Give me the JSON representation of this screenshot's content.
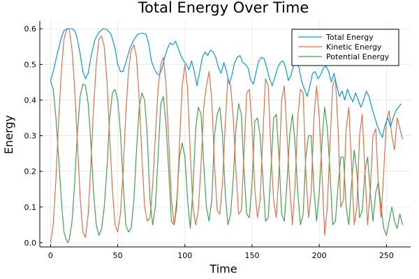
{
  "chart_data": {
    "type": "line",
    "title": "Total Energy Over Time",
    "xlabel": "Time",
    "ylabel": "Energy",
    "xlim": [
      -8,
      268
    ],
    "ylim": [
      -0.012,
      0.622
    ],
    "xticks": [
      0,
      50,
      100,
      150,
      200,
      250
    ],
    "yticks": [
      0.0,
      0.1,
      0.2,
      0.3,
      0.4,
      0.5,
      0.6
    ],
    "xtick_labels": [
      "0",
      "50",
      "100",
      "150",
      "200",
      "250"
    ],
    "ytick_labels": [
      "0.0",
      "0.1",
      "0.2",
      "0.3",
      "0.4",
      "0.5",
      "0.6"
    ],
    "grid": true,
    "legend_position": "top-right",
    "series": [
      {
        "name": "Total Energy",
        "color": "#009af9",
        "x": [
          0,
          2,
          5,
          8,
          10,
          13,
          16,
          18,
          20,
          22,
          24,
          26,
          28,
          30,
          33,
          36,
          39,
          42,
          45,
          48,
          50,
          52,
          54,
          56,
          59,
          62,
          65,
          68,
          71,
          73,
          75,
          77,
          79,
          81,
          83,
          85,
          87,
          89,
          91,
          93,
          95,
          97,
          99,
          101,
          103,
          105,
          107,
          109,
          111,
          113,
          115,
          117,
          119,
          121,
          123,
          125,
          127,
          129,
          131,
          133,
          135,
          137,
          139,
          141,
          143,
          145,
          147,
          149,
          151,
          153,
          155,
          157,
          159,
          161,
          163,
          165,
          167,
          169,
          171,
          173,
          175,
          177,
          179,
          181,
          183,
          185,
          187,
          189,
          191,
          193,
          195,
          197,
          199,
          201,
          203,
          205,
          207,
          209,
          211,
          213,
          215,
          217,
          219,
          221,
          223,
          225,
          227,
          229,
          231,
          233,
          235,
          237,
          239,
          241,
          243,
          245,
          247,
          249,
          251,
          253,
          255,
          257,
          259,
          261
        ],
        "y": [
          0.455,
          0.48,
          0.53,
          0.575,
          0.595,
          0.6,
          0.6,
          0.595,
          0.57,
          0.53,
          0.48,
          0.46,
          0.475,
          0.52,
          0.57,
          0.59,
          0.6,
          0.598,
          0.585,
          0.545,
          0.5,
          0.48,
          0.48,
          0.505,
          0.545,
          0.57,
          0.585,
          0.588,
          0.585,
          0.56,
          0.51,
          0.49,
          0.475,
          0.47,
          0.49,
          0.52,
          0.545,
          0.56,
          0.555,
          0.565,
          0.545,
          0.525,
          0.51,
          0.5,
          0.485,
          0.51,
          0.48,
          0.44,
          0.48,
          0.52,
          0.535,
          0.525,
          0.54,
          0.535,
          0.52,
          0.49,
          0.475,
          0.505,
          0.48,
          0.445,
          0.47,
          0.505,
          0.52,
          0.525,
          0.505,
          0.5,
          0.49,
          0.455,
          0.445,
          0.48,
          0.51,
          0.52,
          0.515,
          0.49,
          0.46,
          0.44,
          0.465,
          0.49,
          0.505,
          0.51,
          0.49,
          0.455,
          0.47,
          0.5,
          0.505,
          0.49,
          0.45,
          0.43,
          0.41,
          0.44,
          0.475,
          0.48,
          0.46,
          0.47,
          0.49,
          0.495,
          0.48,
          0.45,
          0.475,
          0.44,
          0.41,
          0.425,
          0.4,
          0.43,
          0.41,
          0.395,
          0.42,
          0.4,
          0.38,
          0.4,
          0.425,
          0.41,
          0.38,
          0.355,
          0.33,
          0.31,
          0.295,
          0.33,
          0.35,
          0.325,
          0.35,
          0.37,
          0.38,
          0.39
        ]
      },
      {
        "name": "Kinetic Energy",
        "color": "#e26f46",
        "x": [
          0,
          2,
          4,
          6,
          8,
          10,
          12,
          13,
          14,
          16,
          18,
          20,
          22,
          24,
          26,
          28,
          30,
          32,
          34,
          36,
          38,
          40,
          42,
          44,
          46,
          48,
          50,
          52,
          54,
          56,
          58,
          60,
          62,
          64,
          66,
          68,
          70,
          72,
          74,
          76,
          78,
          80,
          82,
          84,
          86,
          88,
          90,
          92,
          94,
          96,
          98,
          100,
          102,
          104,
          106,
          108,
          110,
          112,
          114,
          116,
          118,
          120,
          122,
          124,
          126,
          128,
          130,
          132,
          134,
          136,
          138,
          140,
          142,
          144,
          146,
          148,
          150,
          152,
          154,
          156,
          158,
          160,
          162,
          164,
          166,
          168,
          170,
          172,
          174,
          176,
          178,
          180,
          182,
          184,
          186,
          188,
          190,
          192,
          194,
          196,
          198,
          200,
          202,
          204,
          206,
          208,
          210,
          212,
          214,
          216,
          218,
          220,
          222,
          224,
          226,
          228,
          230,
          232,
          234,
          236,
          238,
          240,
          242,
          244,
          246,
          248,
          250,
          252,
          254,
          256,
          258,
          260,
          262
        ],
        "y": [
          0.0,
          0.05,
          0.18,
          0.34,
          0.48,
          0.57,
          0.6,
          0.6,
          0.595,
          0.54,
          0.43,
          0.28,
          0.13,
          0.03,
          0.015,
          0.08,
          0.22,
          0.38,
          0.5,
          0.57,
          0.58,
          0.55,
          0.45,
          0.3,
          0.15,
          0.05,
          0.03,
          0.08,
          0.2,
          0.36,
          0.48,
          0.54,
          0.555,
          0.52,
          0.4,
          0.24,
          0.1,
          0.06,
          0.07,
          0.16,
          0.3,
          0.43,
          0.5,
          0.52,
          0.44,
          0.28,
          0.12,
          0.05,
          0.1,
          0.28,
          0.44,
          0.5,
          0.43,
          0.25,
          0.1,
          0.05,
          0.09,
          0.22,
          0.38,
          0.44,
          0.48,
          0.4,
          0.22,
          0.09,
          0.08,
          0.17,
          0.33,
          0.46,
          0.44,
          0.35,
          0.2,
          0.08,
          0.09,
          0.25,
          0.42,
          0.43,
          0.32,
          0.15,
          0.07,
          0.12,
          0.3,
          0.46,
          0.44,
          0.26,
          0.12,
          0.07,
          0.2,
          0.4,
          0.44,
          0.3,
          0.16,
          0.05,
          0.16,
          0.35,
          0.43,
          0.42,
          0.2,
          0.07,
          0.14,
          0.35,
          0.44,
          0.35,
          0.2,
          0.02,
          0.1,
          0.28,
          0.44,
          0.46,
          0.32,
          0.1,
          0.12,
          0.32,
          0.38,
          0.22,
          0.05,
          0.1,
          0.3,
          0.36,
          0.2,
          0.05,
          0.15,
          0.3,
          0.32,
          0.16,
          0.07,
          0.2,
          0.34,
          0.37,
          0.3,
          0.26,
          0.35,
          0.32,
          0.29
        ]
      },
      {
        "name": "Potential Energy",
        "color": "#3ea44e",
        "x": [
          0,
          2,
          4,
          6,
          8,
          10,
          12,
          13,
          14,
          16,
          18,
          20,
          22,
          24,
          26,
          28,
          30,
          32,
          34,
          36,
          38,
          40,
          42,
          44,
          46,
          48,
          50,
          52,
          54,
          56,
          58,
          60,
          62,
          64,
          66,
          68,
          70,
          72,
          74,
          76,
          78,
          80,
          82,
          84,
          86,
          88,
          90,
          92,
          94,
          96,
          98,
          100,
          102,
          104,
          106,
          108,
          110,
          112,
          114,
          116,
          118,
          120,
          122,
          124,
          126,
          128,
          130,
          132,
          134,
          136,
          138,
          140,
          142,
          144,
          146,
          148,
          150,
          152,
          154,
          156,
          158,
          160,
          162,
          164,
          166,
          168,
          170,
          172,
          174,
          176,
          178,
          180,
          182,
          184,
          186,
          188,
          190,
          192,
          194,
          196,
          198,
          200,
          202,
          204,
          206,
          208,
          210,
          212,
          214,
          216,
          218,
          220,
          222,
          224,
          226,
          228,
          230,
          232,
          234,
          236,
          238,
          240,
          242,
          244,
          246,
          248,
          250,
          252,
          254,
          256,
          258,
          260,
          262
        ],
        "y": [
          0.455,
          0.43,
          0.35,
          0.24,
          0.12,
          0.03,
          0.005,
          0.0,
          0.01,
          0.06,
          0.17,
          0.31,
          0.41,
          0.445,
          0.44,
          0.39,
          0.28,
          0.14,
          0.05,
          0.02,
          0.04,
          0.1,
          0.21,
          0.35,
          0.42,
          0.43,
          0.4,
          0.31,
          0.17,
          0.05,
          0.03,
          0.04,
          0.12,
          0.26,
          0.38,
          0.42,
          0.4,
          0.3,
          0.12,
          0.05,
          0.1,
          0.24,
          0.39,
          0.41,
          0.33,
          0.2,
          0.06,
          0.05,
          0.12,
          0.24,
          0.28,
          0.24,
          0.12,
          0.04,
          0.15,
          0.32,
          0.38,
          0.36,
          0.22,
          0.1,
          0.06,
          0.12,
          0.3,
          0.36,
          0.38,
          0.3,
          0.14,
          0.05,
          0.08,
          0.18,
          0.32,
          0.39,
          0.36,
          0.2,
          0.08,
          0.07,
          0.17,
          0.34,
          0.35,
          0.3,
          0.18,
          0.06,
          0.07,
          0.2,
          0.35,
          0.36,
          0.24,
          0.08,
          0.06,
          0.17,
          0.3,
          0.36,
          0.28,
          0.14,
          0.05,
          0.08,
          0.24,
          0.3,
          0.3,
          0.15,
          0.06,
          0.14,
          0.28,
          0.38,
          0.32,
          0.2,
          0.05,
          0.06,
          0.16,
          0.24,
          0.24,
          0.1,
          0.05,
          0.16,
          0.26,
          0.2,
          0.07,
          0.09,
          0.2,
          0.24,
          0.14,
          0.06,
          0.14,
          0.17,
          0.1,
          0.04,
          0.02,
          0.06,
          0.1,
          0.06,
          0.04,
          0.08,
          0.05
        ]
      }
    ]
  },
  "colors": {
    "axis": "#000000",
    "grid": "#e6e6e6",
    "background": "#ffffff"
  }
}
